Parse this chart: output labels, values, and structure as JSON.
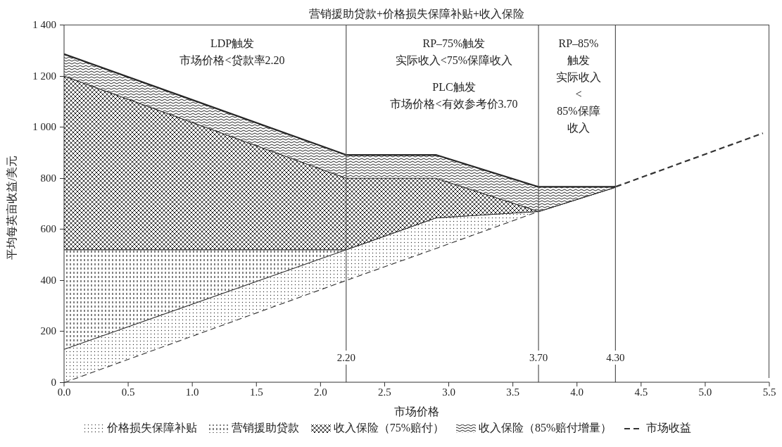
{
  "chart_data": {
    "type": "area",
    "title": "营销援助贷款+价格损失保障补贴+收入保险",
    "xlabel": "市场价格",
    "ylabel": "平均每英亩收益/美元",
    "x": [
      0,
      2.2,
      2.9,
      3.7,
      4.3,
      5.45
    ],
    "stacked": true,
    "series": [
      {
        "name": "市场收益",
        "color": "#ffffff",
        "line_style": "dashed",
        "values": [
          0,
          400,
          525,
          670,
          765,
          975
        ]
      },
      {
        "name": "价格损失保障补贴",
        "color": "#333333",
        "values": [
          130,
          120,
          120,
          0,
          0,
          null
        ]
      },
      {
        "name": "营销援助贷款",
        "color": "#2f2f2f",
        "values": [
          390,
          0,
          0,
          0,
          0,
          null
        ]
      },
      {
        "name": "收入保险（75%赔付）",
        "color": "#2a2a2a",
        "values": [
          680,
          280,
          155,
          0,
          0,
          null
        ]
      },
      {
        "name": "收入保险（85%赔付增量）",
        "color": "#262626",
        "values": [
          85,
          90,
          90,
          95,
          0,
          null
        ]
      }
    ],
    "xlim": [
      0,
      5.5
    ],
    "xticks": [
      {
        "value": 0,
        "label": "0.0"
      },
      0.5,
      {
        "value": 1,
        "label": "1.0"
      },
      1.5,
      {
        "value": 2,
        "label": "2.0"
      },
      2.5,
      {
        "value": 3,
        "label": "3.0"
      },
      3.5,
      {
        "value": 4,
        "label": "4.0"
      },
      4.5,
      {
        "value": 5,
        "label": "5.0"
      },
      5.5
    ],
    "ylim": [
      0,
      1400
    ],
    "yticks": [
      0,
      200,
      400,
      600,
      800,
      {
        "value": 1000,
        "label": "1 000"
      },
      {
        "value": 1200,
        "label": "1 200"
      },
      {
        "value": 1400,
        "label": "1 400"
      }
    ],
    "ref_lines": [
      {
        "axis": "x",
        "value": 2.2,
        "label": "2.20",
        "color": "#555555"
      },
      {
        "axis": "x",
        "value": 3.7,
        "label": "3.70",
        "color": "#555555"
      },
      {
        "axis": "x",
        "value": 4.3,
        "label": "4.30",
        "color": "#555555"
      }
    ],
    "annotations": [
      "LDP触发",
      "市场价格<贷款率2.20",
      "RP–75%触发",
      "实际收入<75%保障收入",
      "PLC触发",
      "市场价格<有效参考价3.70",
      "RP–85%",
      "触发",
      "实际收入",
      "<",
      "85%保障",
      "收入"
    ],
    "legend": "bottom",
    "marker": "none"
  }
}
